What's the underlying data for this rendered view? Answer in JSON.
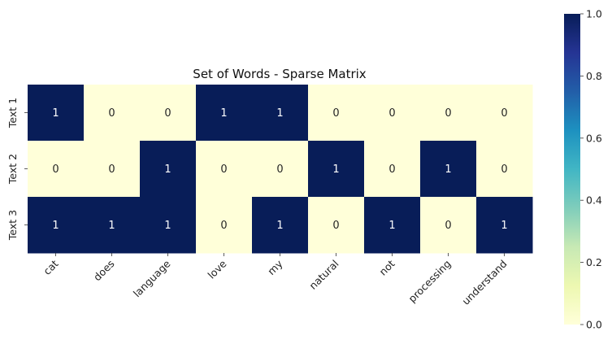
{
  "chart_data": {
    "type": "heatmap",
    "title": "Set of Words - Sparse Matrix",
    "xlabel": "",
    "ylabel": "",
    "x_categories": [
      "cat",
      "does",
      "language",
      "love",
      "my",
      "natural",
      "not",
      "processing",
      "understand"
    ],
    "y_categories": [
      "Text 1",
      "Text 2",
      "Text 3"
    ],
    "values": [
      [
        1,
        0,
        0,
        1,
        1,
        0,
        0,
        0,
        0
      ],
      [
        0,
        0,
        1,
        0,
        0,
        1,
        0,
        1,
        0
      ],
      [
        1,
        1,
        1,
        0,
        1,
        0,
        1,
        0,
        1
      ]
    ],
    "annotated": true,
    "colormap": "YlGnBu",
    "colorbar": {
      "range": [
        0.0,
        1.0
      ],
      "ticks": [
        "0.0",
        "0.2",
        "0.4",
        "0.6",
        "0.8",
        "1.0"
      ],
      "tick_values": [
        0.0,
        0.2,
        0.4,
        0.6,
        0.8,
        1.0
      ]
    },
    "colors": {
      "low": "#ffffd9",
      "high": "#081d58",
      "text_on_low": "#262626",
      "text_on_high": "#ffffff"
    }
  }
}
